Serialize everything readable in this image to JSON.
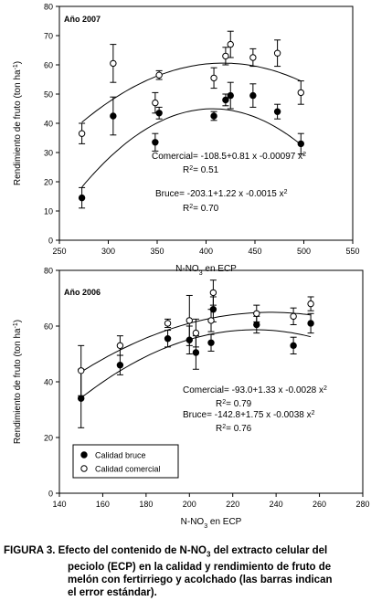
{
  "chart_data": [
    {
      "type": "scatter",
      "title": "Año 2007",
      "xlabel": "N-NO3 en ECP",
      "ylabel": "Rendimiento de fruto (ton ha-1)",
      "xlim": [
        250,
        550
      ],
      "ylim": [
        0,
        80
      ],
      "xticks": [
        250,
        300,
        350,
        400,
        450,
        500,
        550
      ],
      "yticks": [
        0,
        10,
        20,
        30,
        40,
        50,
        60,
        70,
        80
      ],
      "grid": false,
      "series": [
        {
          "marker": "filled",
          "points": [
            {
              "x": 273,
              "y": 14.5,
              "err": 3.5
            },
            {
              "x": 305,
              "y": 42.5,
              "err": 6.5
            },
            {
              "x": 348,
              "y": 33.5,
              "err": 3.0
            },
            {
              "x": 352,
              "y": 43.5,
              "err": 2.0
            },
            {
              "x": 408,
              "y": 42.5,
              "err": 1.5
            },
            {
              "x": 420,
              "y": 48.0,
              "err": 2.0
            },
            {
              "x": 425,
              "y": 49.5,
              "err": 4.5
            },
            {
              "x": 448,
              "y": 49.5,
              "err": 4.0
            },
            {
              "x": 473,
              "y": 44.0,
              "err": 2.5
            },
            {
              "x": 497,
              "y": 33.0,
              "err": 3.5
            }
          ],
          "fit": {
            "a": -203.1,
            "b": 1.22,
            "c": -0.0015
          }
        },
        {
          "marker": "open",
          "points": [
            {
              "x": 273,
              "y": 36.5,
              "err": 3.5
            },
            {
              "x": 305,
              "y": 60.5,
              "err": 6.5
            },
            {
              "x": 348,
              "y": 47.0,
              "err": 3.5
            },
            {
              "x": 352,
              "y": 56.5,
              "err": 1.5
            },
            {
              "x": 408,
              "y": 55.5,
              "err": 3.5
            },
            {
              "x": 420,
              "y": 63.0,
              "err": 3.0
            },
            {
              "x": 425,
              "y": 67.0,
              "err": 4.5
            },
            {
              "x": 448,
              "y": 62.5,
              "err": 3.0
            },
            {
              "x": 473,
              "y": 64.0,
              "err": 4.5
            },
            {
              "x": 497,
              "y": 50.5,
              "err": 4.0
            }
          ],
          "fit": {
            "a": -108.5,
            "b": 0.81,
            "c": -0.00097
          }
        }
      ],
      "annotations": [
        {
          "text": "Comercial= -108.5+0.81 x -0.00097 x",
          "sup": "2"
        },
        {
          "text": "R",
          "sup": "2",
          "tail": "= 0.51"
        },
        {
          "text": "Bruce= -203.1+1.22 x -0.0015 x",
          "sup": "2"
        },
        {
          "text": "R",
          "sup": "2",
          "tail": "= 0.70"
        }
      ]
    },
    {
      "type": "scatter",
      "title": "Año 2006",
      "xlabel": "N-NO3 en ECP",
      "ylabel": "Rendimiento de fruto (ton ha-1)",
      "xlim": [
        140,
        280
      ],
      "ylim": [
        0,
        80
      ],
      "xticks": [
        140,
        160,
        180,
        200,
        220,
        240,
        260,
        280
      ],
      "yticks": [
        0,
        20,
        40,
        60,
        80
      ],
      "grid": false,
      "legend": {
        "position": "bottom-left",
        "entries": [
          "Calidad bruce",
          "Calidad comercial"
        ]
      },
      "series": [
        {
          "name": "Calidad bruce",
          "marker": "filled",
          "points": [
            {
              "x": 150,
              "y": 34,
              "err": 10.5
            },
            {
              "x": 168,
              "y": 46,
              "err": 3.5
            },
            {
              "x": 190,
              "y": 55.5,
              "err": 3.0
            },
            {
              "x": 200,
              "y": 55,
              "err": 5.0
            },
            {
              "x": 203,
              "y": 50.5,
              "err": 6.0
            },
            {
              "x": 210,
              "y": 54,
              "err": 3.0
            },
            {
              "x": 211,
              "y": 66,
              "err": 4.5
            },
            {
              "x": 231,
              "y": 60.5,
              "err": 3.0
            },
            {
              "x": 248,
              "y": 53,
              "err": 3.0
            },
            {
              "x": 256,
              "y": 61,
              "err": 3.5
            }
          ],
          "fit": {
            "a": -142.8,
            "b": 1.75,
            "c": -0.0038
          }
        },
        {
          "name": "Calidad comercial",
          "marker": "open",
          "points": [
            {
              "x": 150,
              "y": 44,
              "err": 9.0
            },
            {
              "x": 168,
              "y": 53,
              "err": 3.5
            },
            {
              "x": 190,
              "y": 61,
              "err": 1.5
            },
            {
              "x": 200,
              "y": 62,
              "err": 9.0
            },
            {
              "x": 203,
              "y": 57.5,
              "err": 5.0
            },
            {
              "x": 210,
              "y": 62,
              "err": 4.0
            },
            {
              "x": 211,
              "y": 72,
              "err": 4.5
            },
            {
              "x": 231,
              "y": 64.5,
              "err": 3.0
            },
            {
              "x": 248,
              "y": 63.5,
              "err": 3.0
            },
            {
              "x": 256,
              "y": 68,
              "err": 2.5
            }
          ],
          "fit": {
            "a": -93.0,
            "b": 1.33,
            "c": -0.0028
          }
        }
      ],
      "annotations": [
        {
          "text": "Comercial= -93.0+1.33 x -0.0028 x",
          "sup": "2"
        },
        {
          "text": "R",
          "sup": "2",
          "tail": "= 0.79"
        },
        {
          "text": "Bruce= -142.8+1.75 x -0.0038 x",
          "sup": "2"
        },
        {
          "text": "R",
          "sup": "2",
          "tail": "= 0.76"
        }
      ]
    }
  ],
  "caption": {
    "label": "FIGURA 3.",
    "text_a": "Efecto del contenido de N-NO",
    "sub": "3",
    "text_b": " del extracto celular del",
    "line2": "peciolo (ECP) en la calidad y rendimiento de fruto de",
    "line3": "melón con fertirriego y acolchado (las barras indican",
    "line4": "el error estándar)."
  }
}
